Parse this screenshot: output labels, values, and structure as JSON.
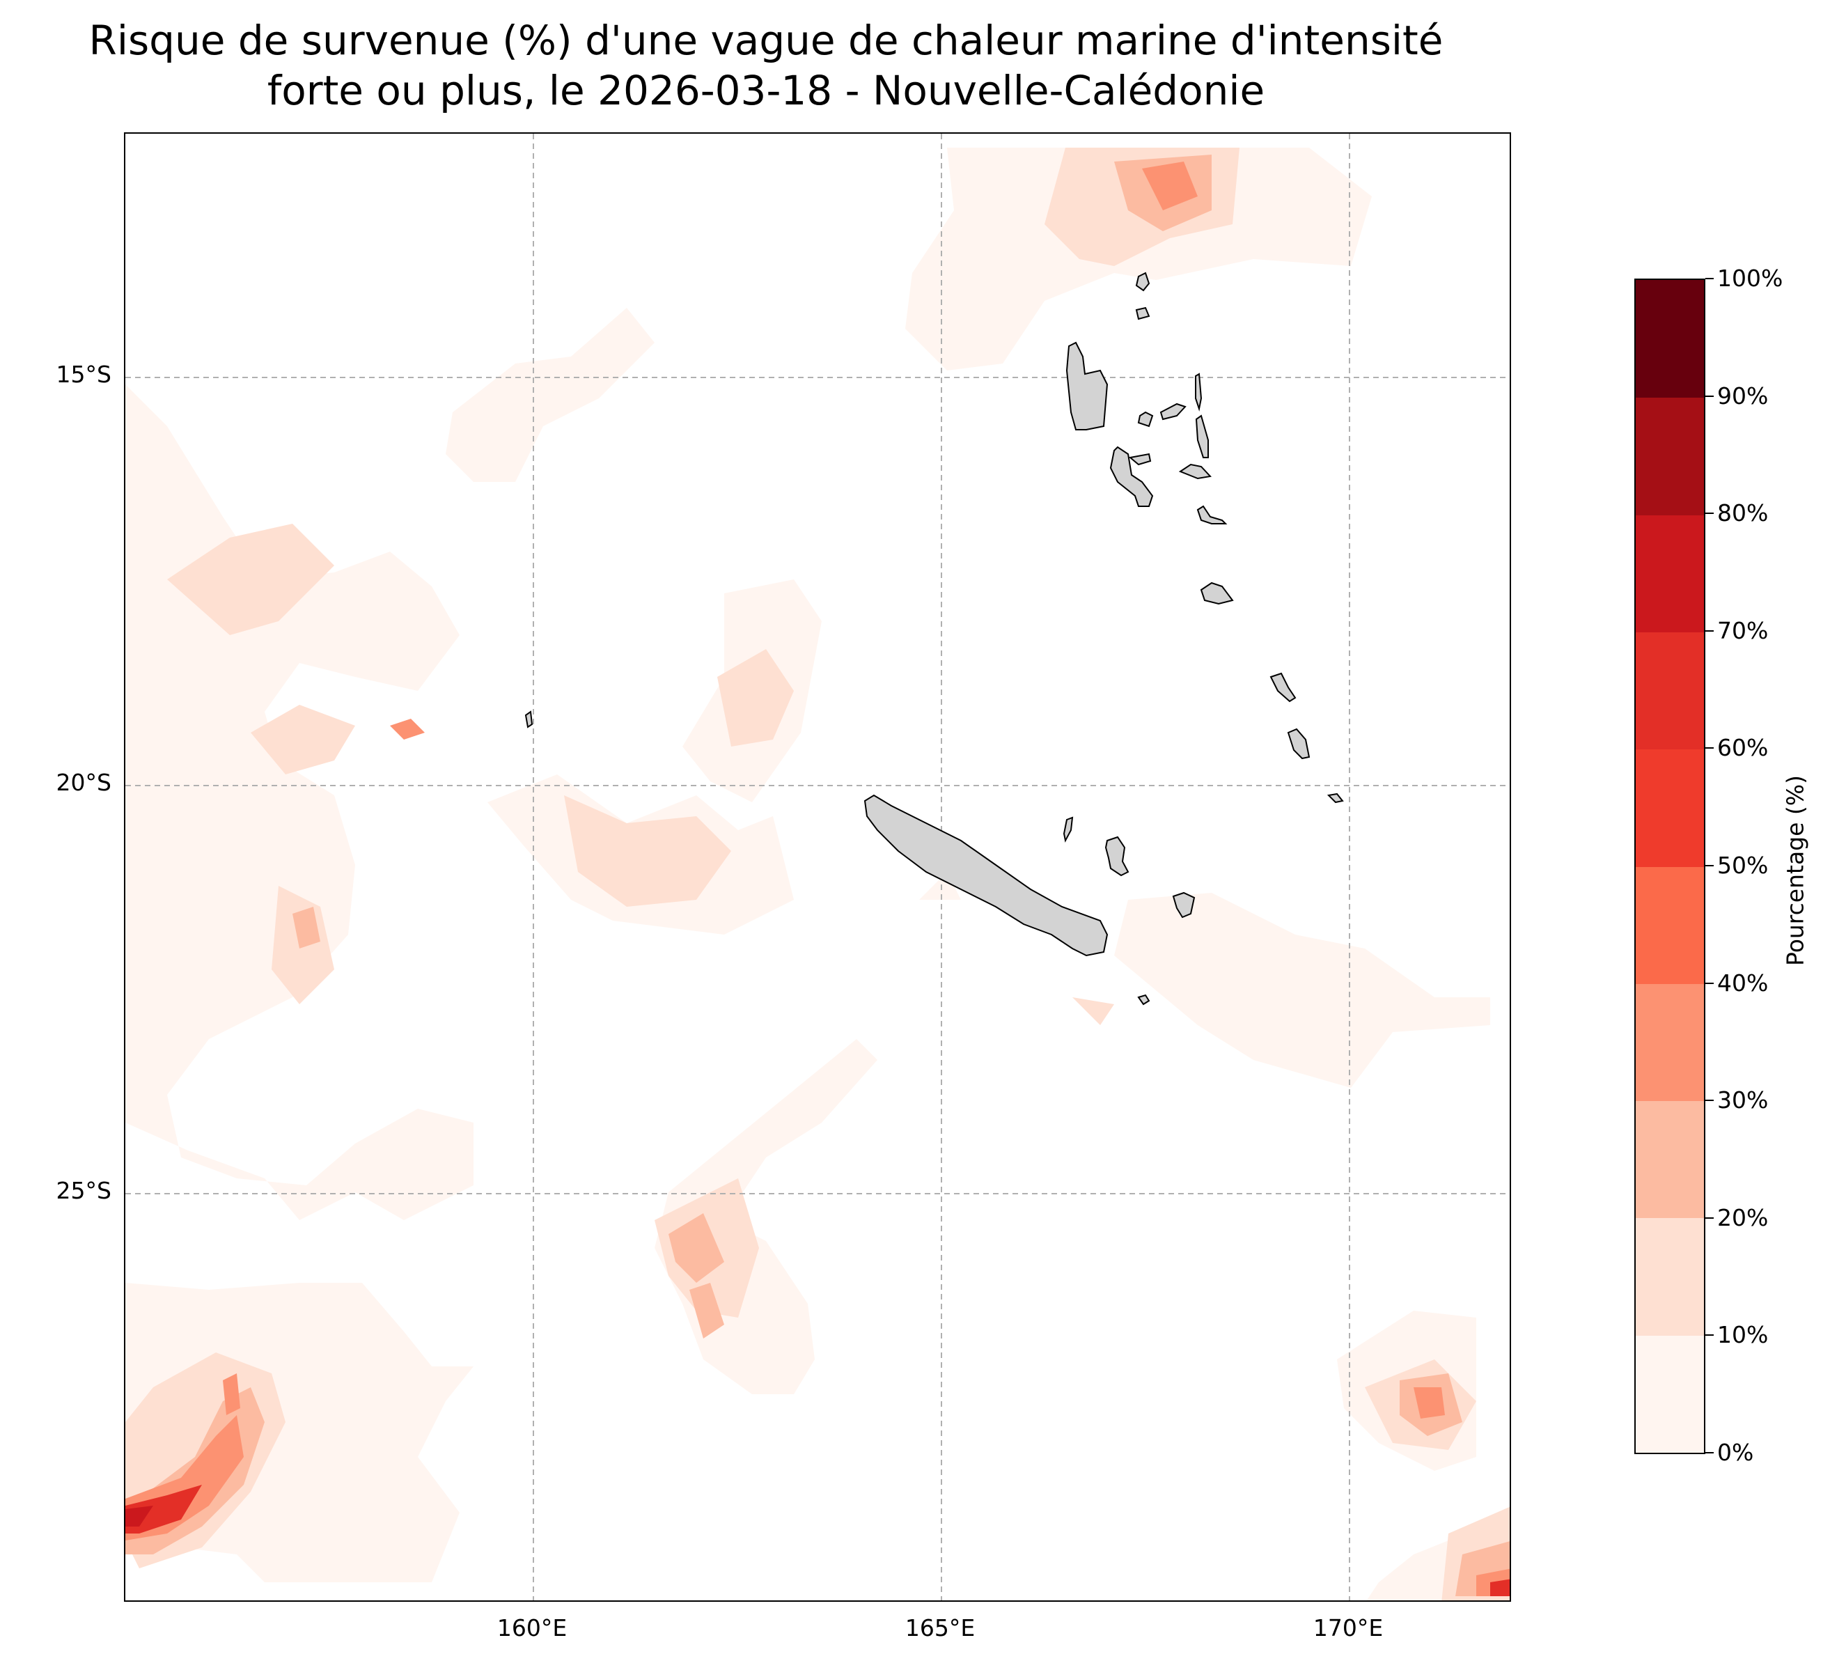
{
  "title_line1": "Risque de survenue (%) d'une vague de chaleur marine d'intensité",
  "title_line2": "forte ou plus, le 2026-03-18 - Nouvelle-Calédonie",
  "lat_labels": [
    "15°S",
    "20°S",
    "25°S"
  ],
  "lon_labels": [
    "160°E",
    "165°E",
    "170°E"
  ],
  "colorbar": {
    "title": "Pourcentage (%)",
    "ticks": [
      "0%",
      "10%",
      "20%",
      "30%",
      "40%",
      "50%",
      "60%",
      "70%",
      "80%",
      "90%",
      "100%"
    ],
    "colors": [
      "#fff5f0",
      "#fee0d2",
      "#fcbba1",
      "#fc9272",
      "#fb6a4a",
      "#ef3b2c",
      "#e32f27",
      "#cb181d",
      "#a50f15",
      "#67000d"
    ]
  },
  "map": {
    "extent_lon": [
      155,
      172
    ],
    "extent_lat": [
      -30,
      -12
    ],
    "gridlines": true,
    "land_color": "#d3d3d3"
  }
}
